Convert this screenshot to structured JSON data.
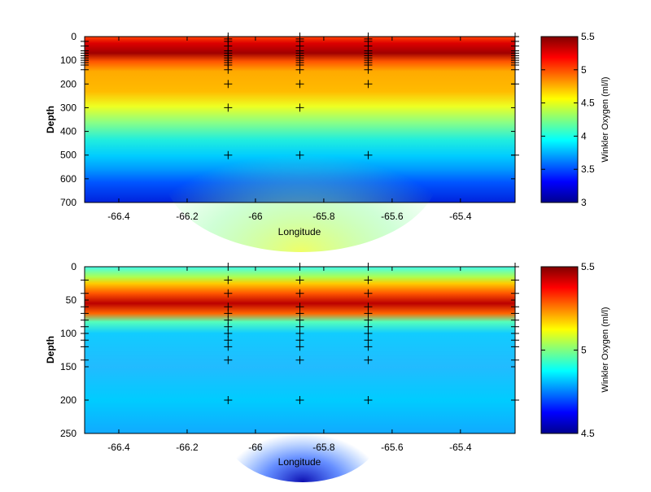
{
  "chart_data": [
    {
      "type": "heatmap",
      "xlabel": "Longitude",
      "ylabel": "Depth",
      "xlim": [
        -66.5,
        -65.24
      ],
      "ylim": [
        700,
        0
      ],
      "x_ticks": [
        -66.4,
        -66.2,
        -66,
        -65.8,
        -65.6,
        -65.4
      ],
      "x_tick_labels": [
        "-66.4",
        "-66.2",
        "-66",
        "-65.8",
        "-65.6",
        "-65.4"
      ],
      "y_ticks": [
        0,
        100,
        200,
        300,
        400,
        500,
        600,
        700
      ],
      "y_tick_labels": [
        "0",
        "100",
        "200",
        "300",
        "400",
        "500",
        "600",
        "700"
      ],
      "colorbar": {
        "label": "Winkler Oxygen (ml/l)",
        "range": [
          3,
          5.5
        ],
        "ticks": [
          3,
          3.5,
          4,
          4.5,
          5,
          5.5
        ],
        "tick_labels": [
          "3",
          "3.5",
          "4",
          "4.5",
          "5",
          "5.5"
        ],
        "colormap": "jet"
      },
      "station_longitudes": [
        -66.5,
        -66.08,
        -65.87,
        -65.67,
        -65.24
      ],
      "sample_depths": [
        [
          20,
          40,
          60,
          70,
          80,
          90,
          100,
          110,
          120,
          140
        ],
        [
          0,
          10,
          20,
          40,
          60,
          70,
          80,
          90,
          100,
          110,
          120,
          140,
          200,
          300,
          500
        ],
        [
          0,
          10,
          20,
          40,
          60,
          70,
          80,
          90,
          100,
          110,
          120,
          140,
          200,
          300,
          500
        ],
        [
          0,
          10,
          20,
          40,
          60,
          70,
          80,
          90,
          100,
          110,
          120,
          140,
          200,
          500
        ],
        [
          0,
          20,
          40,
          60,
          70,
          80,
          90,
          100,
          110,
          120,
          140,
          200,
          500
        ]
      ],
      "grid": false
    },
    {
      "type": "heatmap",
      "xlabel": "Longitude",
      "ylabel": "Depth",
      "xlim": [
        -66.5,
        -65.24
      ],
      "ylim": [
        250,
        0
      ],
      "x_ticks": [
        -66.4,
        -66.2,
        -66,
        -65.8,
        -65.6,
        -65.4
      ],
      "x_tick_labels": [
        "-66.4",
        "-66.2",
        "-66",
        "-65.8",
        "-65.6",
        "-65.4"
      ],
      "y_ticks": [
        0,
        50,
        100,
        150,
        200,
        250
      ],
      "y_tick_labels": [
        "0",
        "50",
        "100",
        "150",
        "200",
        "250"
      ],
      "colorbar": {
        "label": "Winkler Oxygen (ml/l)",
        "range": [
          4.5,
          5.5
        ],
        "ticks": [
          4.5,
          5,
          5.5
        ],
        "tick_labels": [
          "4.5",
          "5",
          "5.5"
        ],
        "colormap": "jet"
      },
      "station_longitudes": [
        -66.5,
        -66.08,
        -65.87,
        -65.67,
        -65.24
      ],
      "sample_depths": [
        [
          20,
          40,
          60,
          70,
          80,
          90,
          100,
          110,
          120,
          140
        ],
        [
          0,
          20,
          40,
          60,
          70,
          80,
          90,
          100,
          110,
          120,
          140,
          200
        ],
        [
          0,
          20,
          40,
          60,
          70,
          80,
          90,
          100,
          110,
          120,
          140,
          200
        ],
        [
          0,
          20,
          40,
          60,
          70,
          80,
          90,
          100,
          110,
          120,
          140,
          200
        ],
        [
          0,
          20,
          40,
          60,
          70,
          80,
          90,
          100,
          110,
          120,
          140,
          200
        ]
      ],
      "grid": false
    }
  ]
}
